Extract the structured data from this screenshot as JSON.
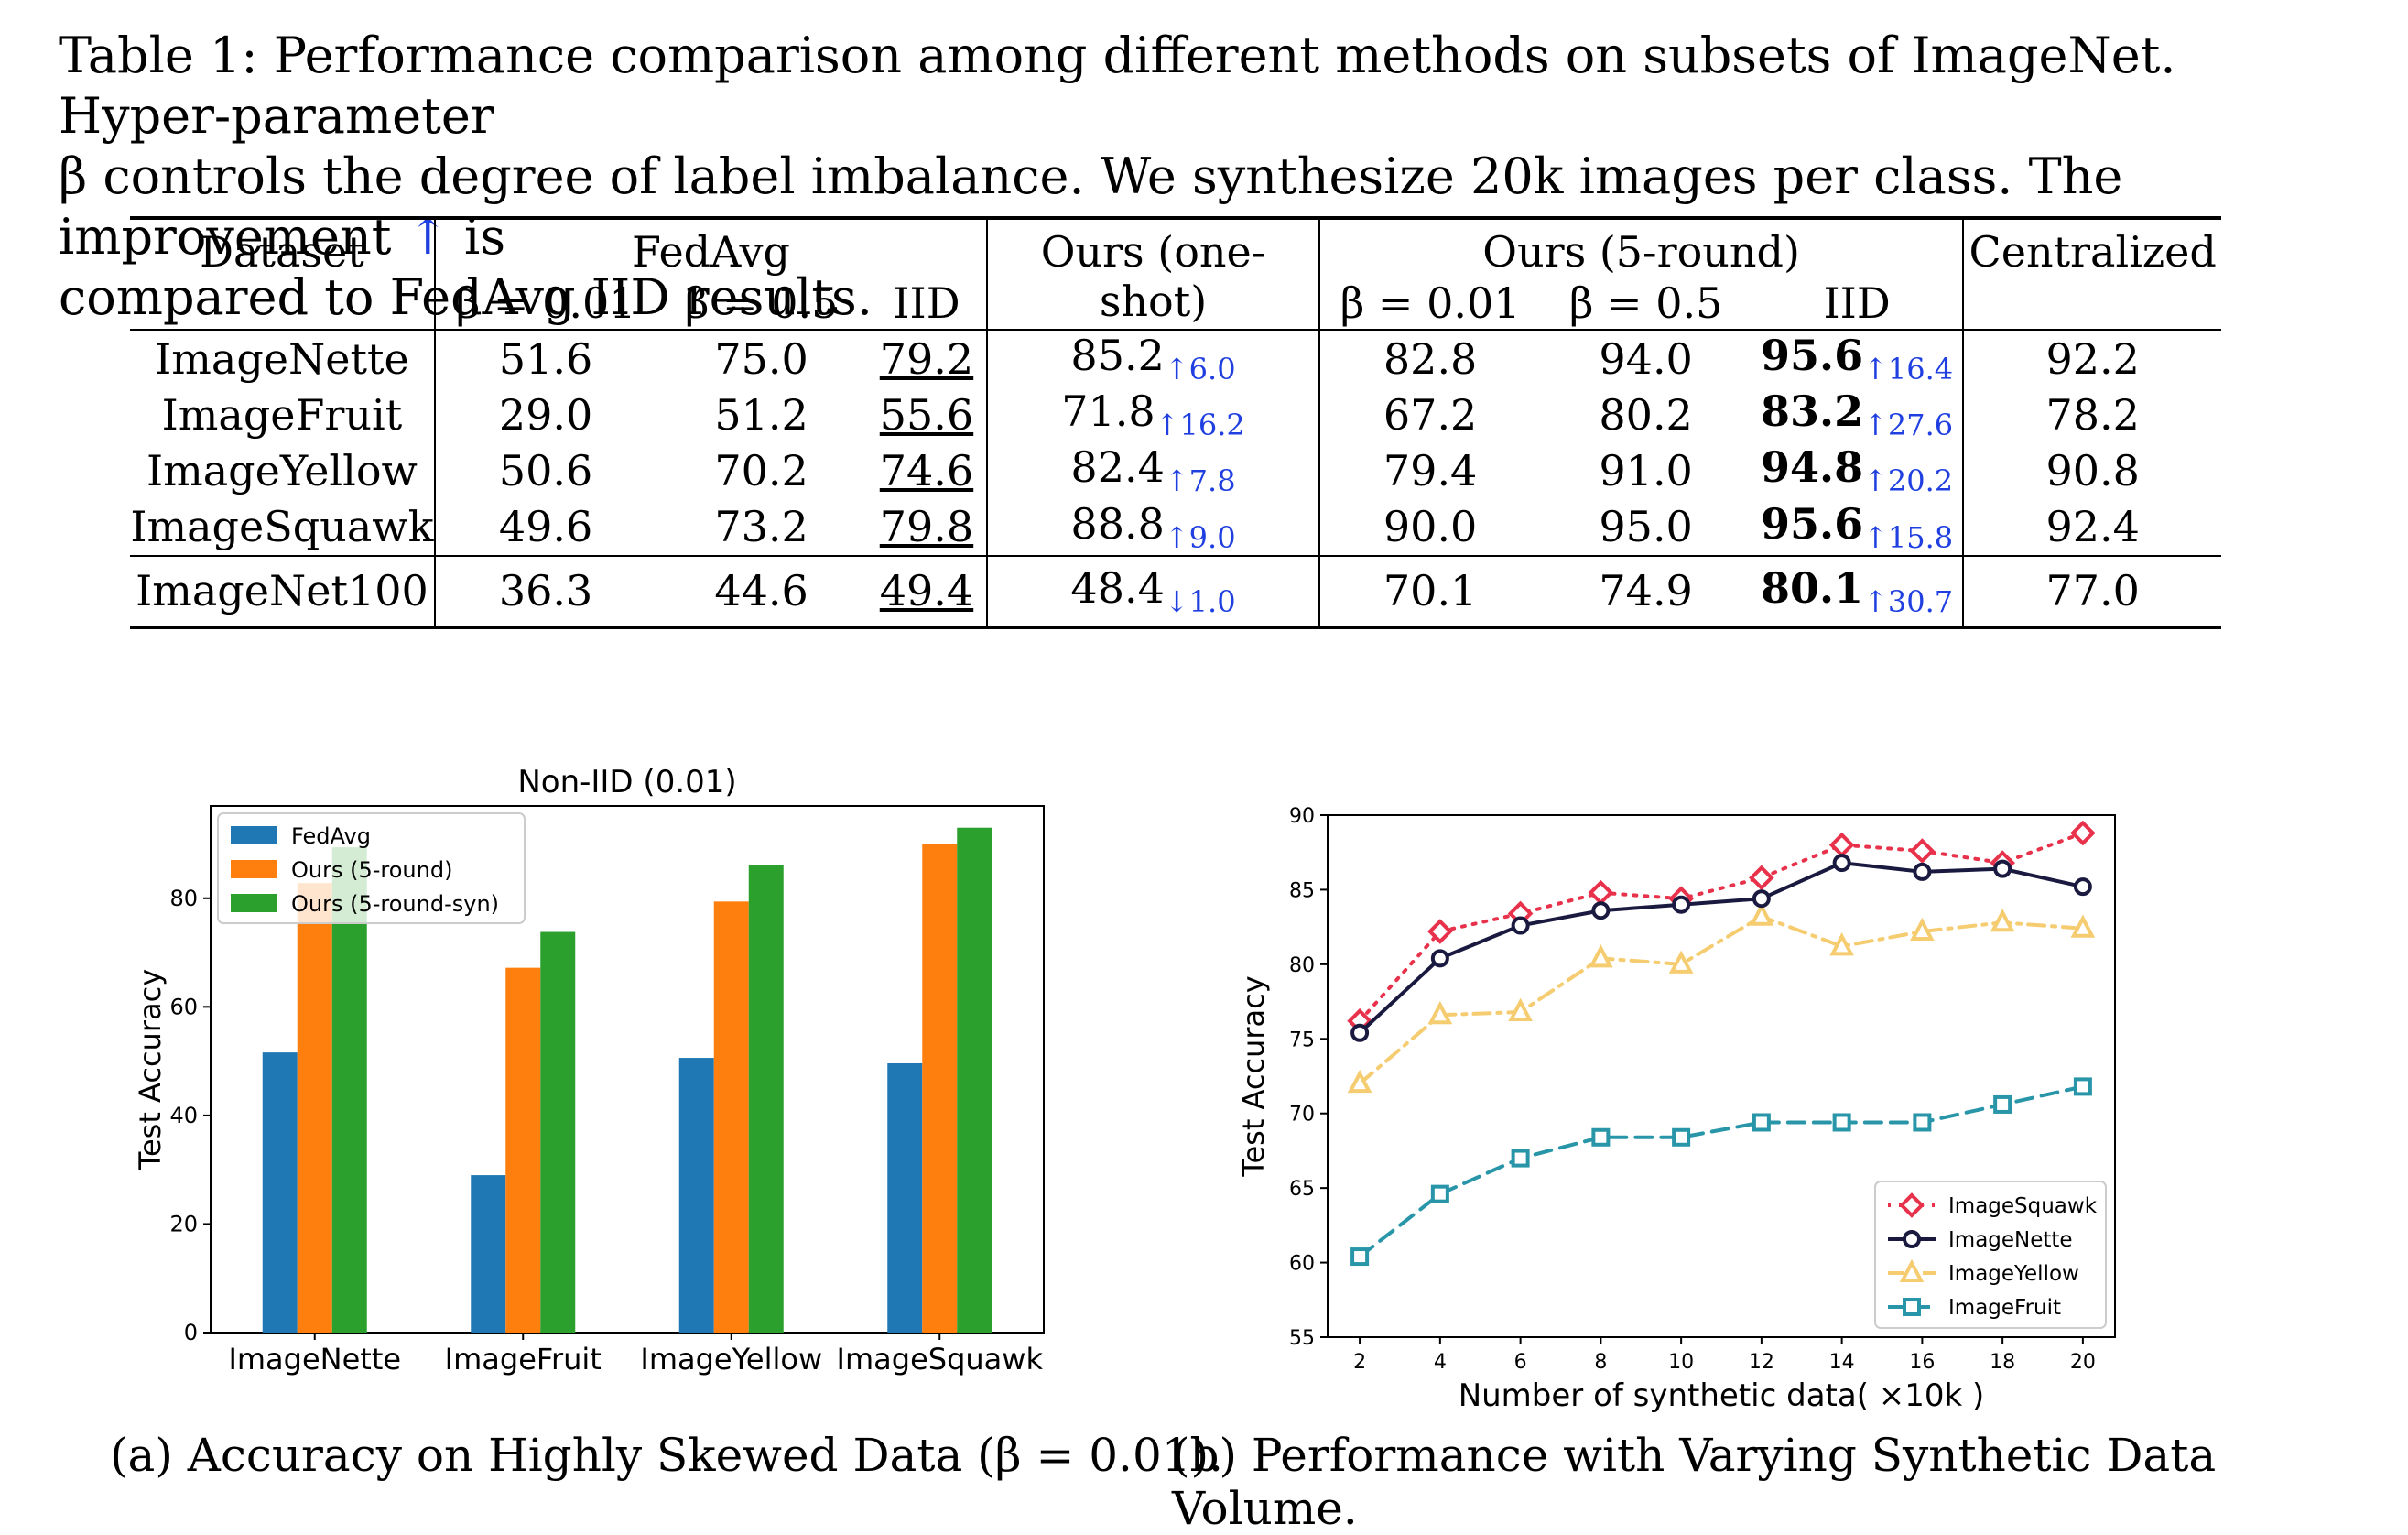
{
  "caption": {
    "line1": "Table 1: Performance comparison among different methods on subsets of ImageNet. Hyper-parameter",
    "line2a": "β controls the degree of label imbalance. We synthesize 20k images per class. The improvement ",
    "arrow": "↑",
    "line2b": " is",
    "line3": "compared to FedAvg IID results."
  },
  "table": {
    "headers": {
      "dataset": "Dataset",
      "fedavg": "FedAvg",
      "oneshot": "Ours (one-shot)",
      "fiveround": "Ours (5-round)",
      "centralized": "Centralized",
      "b001": "β = 0.01",
      "b05": "β = 0.5",
      "iid": "IID"
    },
    "rows": [
      {
        "name": "ImageNette",
        "f1": "51.6",
        "f2": "75.0",
        "f3": "79.2",
        "os": "85.2",
        "osi": "↑6.0",
        "r1": "82.8",
        "r2": "94.0",
        "r3": "95.6",
        "r3i": "↑16.4",
        "c": "92.2"
      },
      {
        "name": "ImageFruit",
        "f1": "29.0",
        "f2": "51.2",
        "f3": "55.6",
        "os": "71.8",
        "osi": "↑16.2",
        "r1": "67.2",
        "r2": "80.2",
        "r3": "83.2",
        "r3i": "↑27.6",
        "c": "78.2"
      },
      {
        "name": "ImageYellow",
        "f1": "50.6",
        "f2": "70.2",
        "f3": "74.6",
        "os": "82.4",
        "osi": "↑7.8",
        "r1": "79.4",
        "r2": "91.0",
        "r3": "94.8",
        "r3i": "↑20.2",
        "c": "90.8"
      },
      {
        "name": "ImageSquawk",
        "f1": "49.6",
        "f2": "73.2",
        "f3": "79.8",
        "os": "88.8",
        "osi": "↑9.0",
        "r1": "90.0",
        "r2": "95.0",
        "r3": "95.6",
        "r3i": "↑15.8",
        "c": "92.4"
      },
      {
        "name": "ImageNet100",
        "f1": "36.3",
        "f2": "44.6",
        "f3": "49.4",
        "os": "48.4",
        "osi": "↓1.0",
        "r1": "70.1",
        "r2": "74.9",
        "r3": "80.1",
        "r3i": "↑30.7",
        "c": "77.0"
      }
    ]
  },
  "subcaptions": {
    "a": "(a) Accuracy on Highly Skewed Data (β = 0.01).",
    "b": "(b) Performance with Varying Synthetic Data Volume."
  },
  "chart_data": [
    {
      "type": "bar",
      "title": "Non-IID (0.01)",
      "xlabel": "",
      "ylabel": "Test Accuracy",
      "ylim": [
        0,
        97
      ],
      "yticks": [
        0,
        20,
        40,
        60,
        80
      ],
      "categories": [
        "ImageNette",
        "ImageFruit",
        "ImageYellow",
        "ImageSquawk"
      ],
      "series": [
        {
          "name": "FedAvg",
          "color": "#1f77b4",
          "values": [
            51.6,
            29.0,
            50.6,
            49.6
          ]
        },
        {
          "name": "Ours (5-round)",
          "color": "#ff7f0e",
          "values": [
            82.8,
            67.2,
            79.4,
            90.0
          ]
        },
        {
          "name": "Ours (5-round-syn)",
          "color": "#2ca02c",
          "values": [
            89.4,
            73.8,
            86.2,
            93.0
          ]
        }
      ],
      "legend": "top-left"
    },
    {
      "type": "line",
      "title": "",
      "xlabel": "Number of synthetic data( ×10k )",
      "ylabel": "Test Accuracy",
      "xlim": [
        1.2,
        20.8
      ],
      "ylim": [
        55,
        90
      ],
      "x": [
        2,
        4,
        6,
        8,
        10,
        12,
        14,
        16,
        18,
        20
      ],
      "xticks": [
        2,
        4,
        6,
        8,
        10,
        12,
        14,
        16,
        18,
        20
      ],
      "yticks": [
        55,
        60,
        65,
        70,
        75,
        80,
        85,
        90
      ],
      "series": [
        {
          "name": "ImageSquawk",
          "color": "#e8314a",
          "dash": "dotted",
          "marker": "diamond",
          "values": [
            76.2,
            82.2,
            83.4,
            84.8,
            84.4,
            85.8,
            88.0,
            87.6,
            86.8,
            88.8
          ]
        },
        {
          "name": "ImageNette",
          "color": "#1a1a40",
          "dash": "solid",
          "marker": "circle",
          "values": [
            75.4,
            80.4,
            82.6,
            83.6,
            84.0,
            84.4,
            86.8,
            86.2,
            86.4,
            85.2
          ]
        },
        {
          "name": "ImageYellow",
          "color": "#f5cc70",
          "dash": "dashdot",
          "marker": "triangle",
          "values": [
            72.0,
            76.6,
            76.8,
            80.4,
            80.0,
            83.2,
            81.2,
            82.2,
            82.8,
            82.4
          ]
        },
        {
          "name": "ImageFruit",
          "color": "#2896a8",
          "dash": "dashed",
          "marker": "square",
          "values": [
            60.4,
            64.6,
            67.0,
            68.4,
            68.4,
            69.4,
            69.4,
            69.4,
            70.6,
            71.8
          ]
        }
      ],
      "legend": "bottom-right"
    }
  ]
}
